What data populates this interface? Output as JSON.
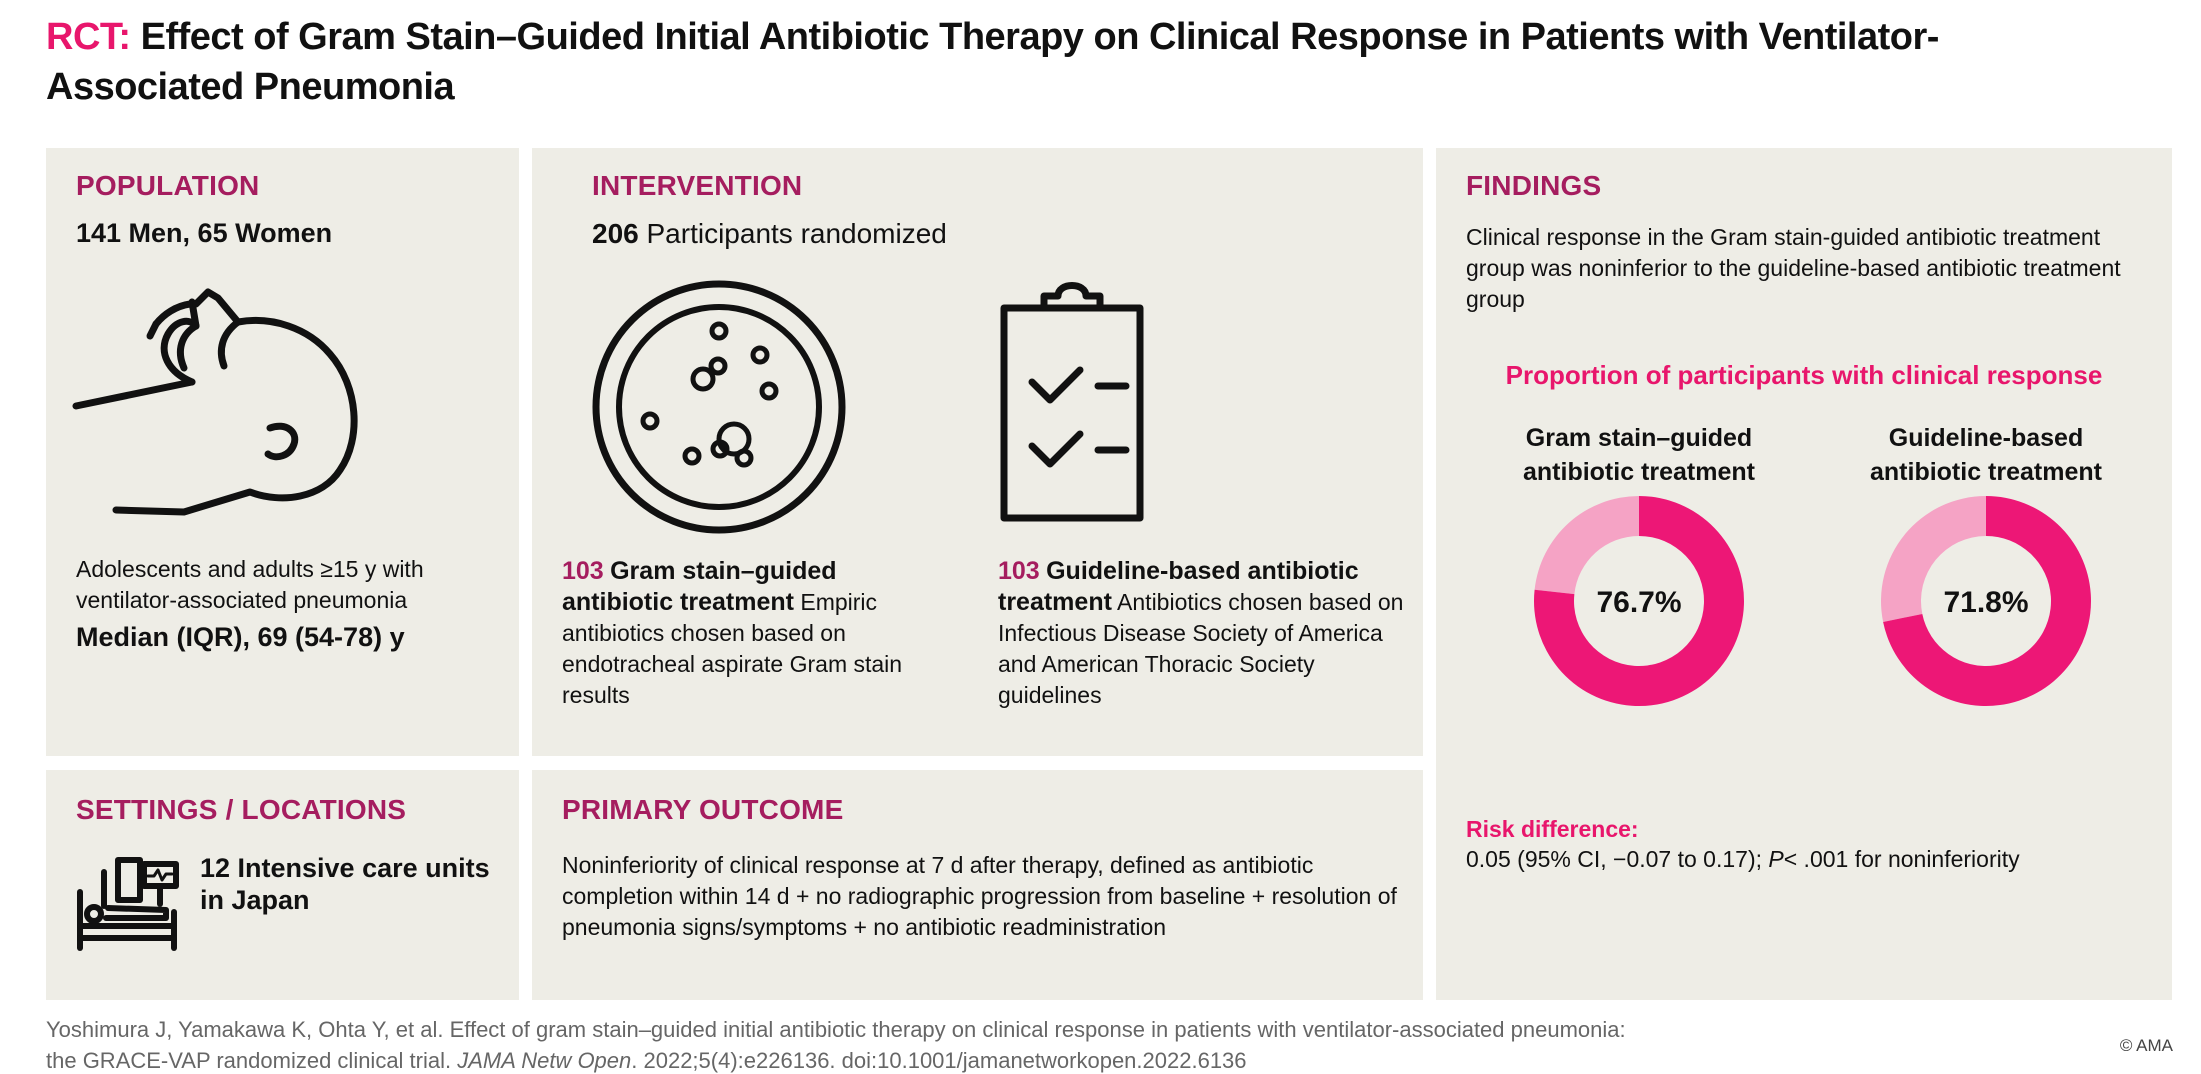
{
  "title": {
    "tag": "RCT:",
    "text": "Effect of Gram Stain–Guided Initial Antibiotic Therapy on Clinical Response in Patients with Ventilator-Associated Pneumonia"
  },
  "population": {
    "heading": "POPULATION",
    "counts": "141 Men, 65 Women",
    "description": "Adolescents and adults ≥15 y with ventilator-associated pneumonia",
    "age": "Median (IQR), 69 (54-78)  y"
  },
  "intervention": {
    "heading": "INTERVENTION",
    "randomized_count": "206",
    "randomized_label": "Participants randomized",
    "arm1": {
      "count": "103",
      "name": "Gram stain–guided antibiotic treatment",
      "desc": "Empiric antibiotics chosen based on endotracheal aspirate Gram stain results"
    },
    "arm2": {
      "count": "103",
      "name": "Guideline-based antibiotic treatment",
      "desc": "Antibiotics chosen based on Infectious Disease Society of America and American Thoracic Society guidelines"
    }
  },
  "settings": {
    "heading": "SETTINGS / LOCATIONS",
    "text": "12 Intensive care units in Japan"
  },
  "outcome": {
    "heading": "PRIMARY OUTCOME",
    "text": "Noninferiority of clinical response at 7 d after therapy, defined as antibiotic completion within 14 d + no radiographic progression from baseline + resolution of pneumonia signs/symptoms + no antibiotic readministration"
  },
  "findings": {
    "heading": "FINDINGS",
    "summary": "Clinical response in the Gram stain-guided antibiotic treatment group was noninferior to the guideline-based antibiotic treatment group",
    "risk_label": "Risk difference:",
    "risk_value_prefix": "0.05  (95% CI, −0.07 to 0.17); ",
    "risk_value_p": "P",
    "risk_value_suffix": "< .001 for noninferiority"
  },
  "chart_data": {
    "type": "pie",
    "title": "Proportion of participants with clinical response",
    "series": [
      {
        "name": "Gram stain–guided antibiotic treatment",
        "value": 76.7,
        "label": "76.7%"
      },
      {
        "name": "Guideline-based antibiotic treatment",
        "value": 71.8,
        "label": "71.8%"
      }
    ],
    "colors": {
      "response": "#ed1776",
      "no_response": "#f5a3c5"
    }
  },
  "citation": {
    "text1": "Yoshimura J, Yamakawa K, Ohta Y, et al. Effect of gram stain–guided initial antibiotic therapy on clinical response in patients with ventilator-associated pneumonia:",
    "text2": "the GRACE-VAP randomized clinical trial. ",
    "journal": "JAMA Netw Open",
    "text3": ". 2022;5(4):e226136. doi:10.1001/jamanetworkopen.2022.6136",
    "copyright": "© AMA"
  },
  "colors": {
    "accent_pink": "#e8166c",
    "heading_magenta": "#a51d5f",
    "panel_bg": "#eeede6"
  },
  "icons": [
    "patient-ventilator-icon",
    "petri-dish-icon",
    "clipboard-checklist-icon",
    "icu-bed-icon"
  ]
}
